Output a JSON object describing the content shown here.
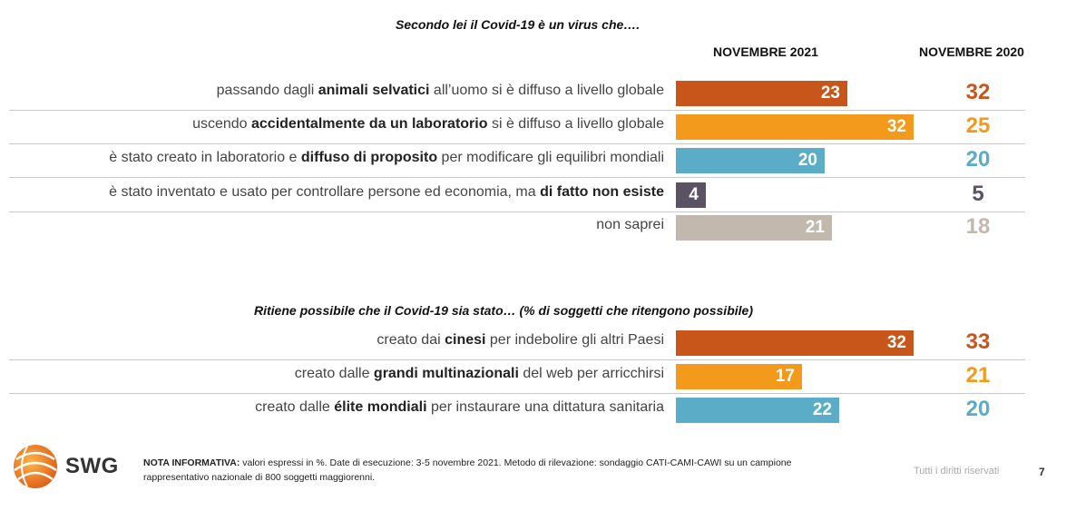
{
  "colors": {
    "orange_dark": "#c8561a",
    "orange": "#f39a1c",
    "blue": "#5aacc7",
    "purple": "#5b5266",
    "gray": "#c2b8ae"
  },
  "headers": {
    "col_2021": "NOVEMBRE 2021",
    "col_2020": "NOVEMBRE 2020"
  },
  "chart_data": [
    {
      "type": "bar",
      "title": "Secondo lei il Covid-19 è un virus che….",
      "series": [
        {
          "name": "NOVEMBRE 2021",
          "values": [
            23,
            32,
            20,
            4,
            21
          ]
        },
        {
          "name": "NOVEMBRE 2020",
          "values": [
            32,
            25,
            20,
            5,
            18
          ]
        }
      ],
      "categories": [
        {
          "pre": "passando dagli ",
          "bold": "animali selvatici",
          "post": " all’uomo si è diffuso a livello globale",
          "color": "#c8561a",
          "v2021": "23",
          "v2020": "32"
        },
        {
          "pre": "uscendo ",
          "bold": "accidentalmente da un laboratorio",
          "post": " si è diffuso a livello globale",
          "color": "#f39a1c",
          "v2021": "32",
          "v2020": "25"
        },
        {
          "pre": "è stato creato in laboratorio e ",
          "bold": "diffuso di proposito",
          "post": " per modificare gli equilibri mondiali",
          "color": "#5aacc7",
          "v2021": "20",
          "v2020": "20"
        },
        {
          "pre": "è stato inventato e usato per controllare persone ed economia, ma ",
          "bold": "di fatto non esiste",
          "post": "",
          "color": "#5b5266",
          "v2021": "4",
          "v2020": "5"
        },
        {
          "pre": "non saprei",
          "bold": "",
          "post": "",
          "color": "#c2b8ae",
          "v2021": "21",
          "v2020": "18"
        }
      ]
    },
    {
      "type": "bar",
      "title": "Ritiene possibile che il Covid-19 sia stato… (% di soggetti che ritengono possibile)",
      "series": [
        {
          "name": "NOVEMBRE 2021",
          "values": [
            32,
            17,
            22
          ]
        },
        {
          "name": "NOVEMBRE 2020",
          "values": [
            33,
            21,
            20
          ]
        }
      ],
      "categories": [
        {
          "pre": "creato dai ",
          "bold": "cinesi",
          "post": " per indebolire gli altri Paesi",
          "color": "#c8561a",
          "v2021": "32",
          "v2020": "33"
        },
        {
          "pre": "creato dalle ",
          "bold": "grandi multinazionali",
          "post": " del web per arricchirsi",
          "color": "#f39a1c",
          "v2021": "17",
          "v2020": "21"
        },
        {
          "pre": "creato dalle ",
          "bold": "élite mondiali",
          "post": " per instaurare una dittatura sanitaria",
          "color": "#5aacc7",
          "v2021": "22",
          "v2020": "20"
        }
      ]
    }
  ],
  "footer": {
    "logo": "SWG",
    "note_bold": "NOTA INFORMATIVA:",
    "note_text": " valori espressi in %. Date di esecuzione: 3-5 novembre 2021. Metodo di rilevazione: sondaggio CATI-CAMI-CAWI su un campione rappresentativo nazionale di 800 soggetti maggiorenni.",
    "rights": "Tutti i diritti riservati",
    "page": "7"
  }
}
